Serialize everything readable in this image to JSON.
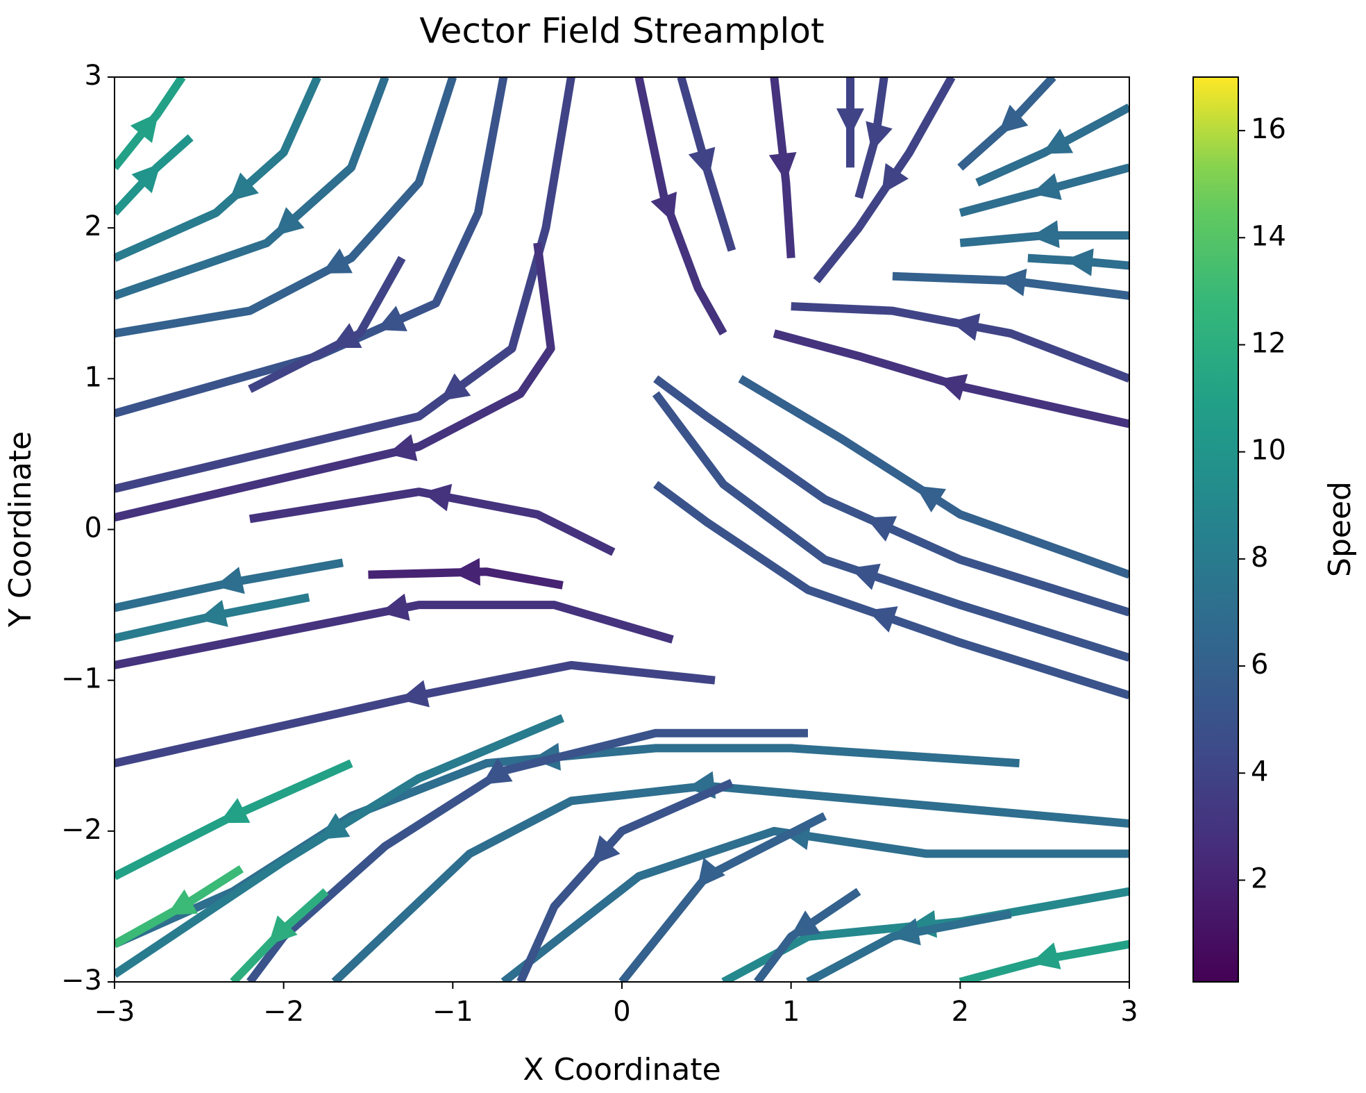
{
  "chart_data": {
    "type": "streamplot",
    "title": "Vector Field Streamplot",
    "x_label": "X Coordinate",
    "y_label": "Y Coordinate",
    "colorbar_label": "Speed",
    "colormap": "viridis",
    "clim": [
      0.1,
      17
    ],
    "cticks": [
      2,
      4,
      6,
      8,
      10,
      12,
      14,
      16
    ],
    "xlim": [
      -3,
      3
    ],
    "ylim": [
      -3,
      3
    ],
    "xticks": [
      {
        "value": -3,
        "label": "−3"
      },
      {
        "value": -2,
        "label": "−2"
      },
      {
        "value": -1,
        "label": "−1"
      },
      0,
      1,
      2,
      3
    ],
    "yticks": [
      {
        "value": -3,
        "label": "−3"
      },
      {
        "value": -2,
        "label": "−2"
      },
      {
        "value": -1,
        "label": "−1"
      },
      0,
      1,
      2,
      3
    ],
    "streamlines": [
      {
        "x": [
          -3,
          -2.75,
          -2.6
        ],
        "y": [
          2.4,
          2.75,
          3
        ],
        "speed": 11
      },
      {
        "x": [
          -3,
          -2.75,
          -2.55
        ],
        "y": [
          2.1,
          2.4,
          2.6
        ],
        "speed": 10
      },
      {
        "x": [
          -1.8,
          -2.0,
          -2.4,
          -3
        ],
        "y": [
          3,
          2.5,
          2.1,
          1.8
        ],
        "speed": 8
      },
      {
        "x": [
          -1.4,
          -1.6,
          -2.1,
          -3
        ],
        "y": [
          3,
          2.4,
          1.9,
          1.55
        ],
        "speed": 7
      },
      {
        "x": [
          -1.0,
          -1.2,
          -1.6,
          -2.2,
          -3
        ],
        "y": [
          3,
          2.3,
          1.8,
          1.45,
          1.3
        ],
        "speed": 6
      },
      {
        "x": [
          -0.7,
          -0.85,
          -1.1,
          -1.8,
          -3
        ],
        "y": [
          3,
          2.1,
          1.5,
          1.15,
          0.77
        ],
        "speed": 5
      },
      {
        "x": [
          -0.3,
          -0.45,
          -0.65,
          -1.2,
          -3
        ],
        "y": [
          3,
          2.0,
          1.2,
          0.75,
          0.27
        ],
        "speed": 4
      },
      {
        "x": [
          -0.5,
          -0.42,
          -0.6,
          -1.2,
          -3
        ],
        "y": [
          1.9,
          1.2,
          0.9,
          0.55,
          0.08
        ],
        "speed": 3
      },
      {
        "x": [
          -1.3,
          -1.55,
          -2.2
        ],
        "y": [
          1.8,
          1.3,
          0.93
        ],
        "speed": 4
      },
      {
        "x": [
          0.1,
          0.25,
          0.45,
          0.6
        ],
        "y": [
          3,
          2.2,
          1.6,
          1.3
        ],
        "speed": 3
      },
      {
        "x": [
          0.35,
          0.5,
          0.65
        ],
        "y": [
          3,
          2.4,
          1.85
        ],
        "speed": 4
      },
      {
        "x": [
          0.9,
          0.97,
          1.0
        ],
        "y": [
          3,
          2.3,
          1.8
        ],
        "speed": 3
      },
      {
        "x": [
          1.35,
          1.35,
          1.35
        ],
        "y": [
          3,
          2.7,
          2.4
        ],
        "speed": 4
      },
      {
        "x": [
          1.55,
          1.5,
          1.4
        ],
        "y": [
          3,
          2.6,
          2.2
        ],
        "speed": 4
      },
      {
        "x": [
          1.95,
          1.7,
          1.4,
          1.15
        ],
        "y": [
          3,
          2.5,
          2.0,
          1.65
        ],
        "speed": 4
      },
      {
        "x": [
          2.55,
          2.3,
          2.0
        ],
        "y": [
          3,
          2.7,
          2.4
        ],
        "speed": 6
      },
      {
        "x": [
          3,
          2.5,
          2.1
        ],
        "y": [
          2.8,
          2.5,
          2.3
        ],
        "speed": 7
      },
      {
        "x": [
          3,
          2.5,
          2.0
        ],
        "y": [
          2.4,
          2.25,
          2.1
        ],
        "speed": 7
      },
      {
        "x": [
          3,
          2.5,
          2.0
        ],
        "y": [
          1.95,
          1.95,
          1.9
        ],
        "speed": 7
      },
      {
        "x": [
          3,
          2.7,
          2.4
        ],
        "y": [
          1.75,
          1.78,
          1.8
        ],
        "speed": 7
      },
      {
        "x": [
          3,
          2.3,
          1.6
        ],
        "y": [
          1.55,
          1.65,
          1.68
        ],
        "speed": 6
      },
      {
        "x": [
          3,
          2.3,
          1.6,
          1.0
        ],
        "y": [
          1.0,
          1.3,
          1.45,
          1.48
        ],
        "speed": 4
      },
      {
        "x": [
          3,
          2.0,
          1.4,
          0.9
        ],
        "y": [
          0.7,
          0.95,
          1.15,
          1.3
        ],
        "speed": 3
      },
      {
        "x": [
          3,
          2.0,
          1.3,
          0.7
        ],
        "y": [
          -0.3,
          0.1,
          0.6,
          1.0
        ],
        "speed": 6
      },
      {
        "x": [
          3,
          2.0,
          1.2,
          0.5,
          0.2
        ],
        "y": [
          -0.55,
          -0.2,
          0.2,
          0.75,
          1.0
        ],
        "speed": 5
      },
      {
        "x": [
          3,
          2.0,
          1.2,
          0.6,
          0.2
        ],
        "y": [
          -0.85,
          -0.5,
          -0.2,
          0.3,
          0.9
        ],
        "speed": 5
      },
      {
        "x": [
          3,
          2.0,
          1.1,
          0.5,
          0.2
        ],
        "y": [
          -1.1,
          -0.75,
          -0.4,
          0.05,
          0.3
        ],
        "speed": 5
      },
      {
        "x": [
          -0.05,
          -0.5,
          -1.2,
          -2.2
        ],
        "y": [
          -0.15,
          0.1,
          0.25,
          0.07
        ],
        "speed": 3
      },
      {
        "x": [
          -0.35,
          -0.8,
          -1.5
        ],
        "y": [
          -0.37,
          -0.28,
          -0.3
        ],
        "speed": 2
      },
      {
        "x": [
          0.3,
          -0.4,
          -1.2,
          -3
        ],
        "y": [
          -0.73,
          -0.5,
          -0.5,
          -0.9
        ],
        "speed": 3
      },
      {
        "x": [
          0.55,
          -0.3,
          -1.2,
          -3
        ],
        "y": [
          -1.0,
          -0.9,
          -1.1,
          -1.55
        ],
        "speed": 4
      },
      {
        "x": [
          -1.65,
          -2.3,
          -3
        ],
        "y": [
          -0.22,
          -0.35,
          -0.52
        ],
        "speed": 7
      },
      {
        "x": [
          -1.85,
          -2.4,
          -3
        ],
        "y": [
          -0.45,
          -0.57,
          -0.72
        ],
        "speed": 8
      },
      {
        "x": [
          2.35,
          1.0,
          0.2,
          -0.8,
          -1.6,
          -2.3,
          -3
        ],
        "y": [
          -1.55,
          -1.45,
          -1.45,
          -1.55,
          -1.9,
          -2.4,
          -2.75
        ],
        "speed": 7
      },
      {
        "x": [
          3,
          1.5,
          0.5,
          -0.3,
          -0.9,
          -1.7
        ],
        "y": [
          -1.95,
          -1.8,
          -1.7,
          -1.8,
          -2.15,
          -3
        ],
        "speed": 7
      },
      {
        "x": [
          3,
          1.8,
          0.9,
          0.1,
          -0.7
        ],
        "y": [
          -2.15,
          -2.15,
          -2.0,
          -2.3,
          -3
        ],
        "speed": 7
      },
      {
        "x": [
          3,
          2.0,
          1.1,
          0.6
        ],
        "y": [
          -2.4,
          -2.6,
          -2.7,
          -3
        ],
        "speed": 9
      },
      {
        "x": [
          3,
          2.5,
          2.0
        ],
        "y": [
          -2.75,
          -2.85,
          -3
        ],
        "speed": 11
      },
      {
        "x": [
          1.1,
          0.2,
          -0.7,
          -1.4,
          -2.0,
          -2.2
        ],
        "y": [
          -1.35,
          -1.35,
          -1.6,
          -2.1,
          -2.7,
          -3
        ],
        "speed": 5
      },
      {
        "x": [
          -0.35,
          -1.2,
          -2.0,
          -3
        ],
        "y": [
          -1.25,
          -1.65,
          -2.2,
          -2.95
        ],
        "speed": 8
      },
      {
        "x": [
          -1.6,
          -2.3,
          -3
        ],
        "y": [
          -1.55,
          -1.9,
          -2.3
        ],
        "speed": 11
      },
      {
        "x": [
          -2.25,
          -2.6,
          -3
        ],
        "y": [
          -2.25,
          -2.5,
          -2.75
        ],
        "speed": 13
      },
      {
        "x": [
          -1.75,
          -2.0,
          -2.3
        ],
        "y": [
          -2.4,
          -2.65,
          -3
        ],
        "speed": 12
      },
      {
        "x": [
          0.65,
          0.0,
          -0.4,
          -0.6
        ],
        "y": [
          -1.68,
          -2.0,
          -2.5,
          -3
        ],
        "speed": 5
      },
      {
        "x": [
          1.2,
          0.5,
          0.0
        ],
        "y": [
          -1.9,
          -2.3,
          -3
        ],
        "speed": 6
      },
      {
        "x": [
          1.4,
          1.0,
          0.8
        ],
        "y": [
          -2.4,
          -2.7,
          -3
        ],
        "speed": 6
      },
      {
        "x": [
          2.3,
          1.6,
          1.1
        ],
        "y": [
          -2.55,
          -2.7,
          -3
        ],
        "speed": 7
      }
    ]
  }
}
